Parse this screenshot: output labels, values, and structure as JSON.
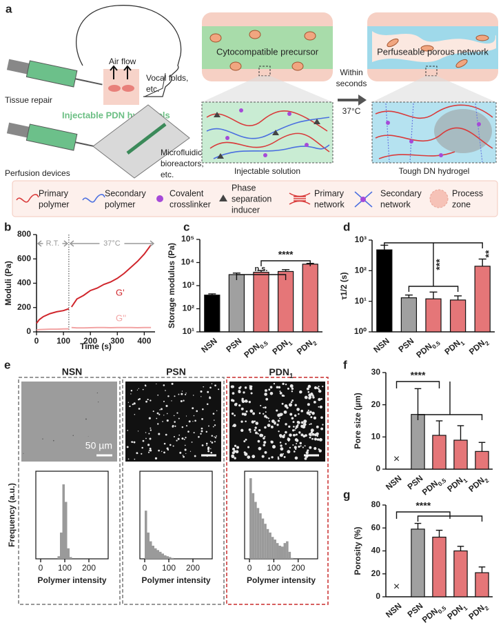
{
  "panel_a": {
    "label": "a",
    "air_flow": "Air flow",
    "vocal_folds": [
      "Vocal folds,",
      "etc."
    ],
    "tissue_repair": "Tissue repair",
    "hydrogel": "Injectable PDN hydrogels",
    "perfusion": "Perfusion devices",
    "devices": [
      "Microfluidics,",
      "bioreactors,",
      "etc."
    ],
    "precursor": "Cytocompatible precursor",
    "porous": "Perfuseable porous network",
    "transition": [
      "Within",
      "seconds"
    ],
    "temperature": "37°C",
    "solution": "Injectable solution",
    "tough": "Tough DN hydrogel",
    "legend": [
      [
        "Primary",
        "polymer"
      ],
      [
        "Secondary",
        "polymer"
      ],
      [
        "Covalent",
        "crosslinker"
      ],
      [
        "Phase",
        "separation",
        "inducer"
      ],
      [
        "Primary",
        "network"
      ],
      [
        "Secondary",
        "network"
      ],
      [
        "Process",
        "zone"
      ]
    ]
  },
  "panel_e": {
    "label": "e",
    "scale_bar": "50 µm"
  },
  "chart_data": [
    {
      "type": "line",
      "panel": "b",
      "x_label": "Time (s)",
      "y_label": "Moduli (Pa)",
      "x": [
        0,
        10,
        25,
        50,
        75,
        100,
        120,
        125,
        130,
        150,
        175,
        200,
        225,
        250,
        275,
        300,
        325,
        350,
        375,
        400,
        425
      ],
      "series": [
        {
          "name": "G'",
          "color": "#d0262c",
          "values": [
            70,
            100,
            125,
            150,
            165,
            175,
            190,
            null,
            205,
            270,
            300,
            340,
            360,
            390,
            410,
            440,
            480,
            530,
            580,
            640,
            715
          ]
        },
        {
          "name": "G''",
          "color": "#f2a3a3",
          "values": [
            15,
            18,
            20,
            22,
            22,
            24,
            25,
            null,
            35,
            33,
            33,
            34,
            35,
            36,
            34,
            35,
            36,
            35,
            34,
            35,
            36
          ]
        }
      ],
      "xlim": [
        0,
        440
      ],
      "ylim": [
        0,
        800
      ],
      "xticks": [
        0,
        100,
        200,
        300,
        400
      ],
      "yticks": [
        0,
        200,
        400,
        600,
        800
      ],
      "annotations": [
        "R.T.",
        "37°C"
      ],
      "vlines": [
        120
      ]
    },
    {
      "type": "bar",
      "panel": "c",
      "y_label": "Storage modulus (Pa)",
      "categories": [
        "NSN",
        "PSN",
        "PDN0.5",
        "PDN1",
        "PDN2"
      ],
      "values": [
        390,
        3000,
        3800,
        4100,
        8500
      ],
      "errors": [
        50,
        500,
        700,
        800,
        700
      ],
      "colors": [
        "#000000",
        "#a0a0a0",
        "#e57678",
        "#e57678",
        "#e57678"
      ],
      "log_y": true,
      "ylim": [
        10,
        100000
      ],
      "yticks": [
        {
          "value": 10,
          "label": "10¹"
        },
        {
          "value": 100,
          "label": "10²"
        },
        {
          "value": 1000,
          "label": "10³"
        },
        {
          "value": 10000,
          "label": "10⁴"
        },
        {
          "value": 100000,
          "label": "10⁵"
        }
      ],
      "annotations": [
        "n.s.",
        "****"
      ]
    },
    {
      "type": "bar",
      "panel": "d",
      "y_label": "τ1/2 (s)",
      "categories": [
        "NSN",
        "PSN",
        "PDN0.5",
        "PDN1",
        "PDN2"
      ],
      "values": [
        480,
        13,
        12,
        11,
        140
      ],
      "errors": [
        200,
        3,
        8,
        4,
        100
      ],
      "colors": [
        "#000000",
        "#a0a0a0",
        "#e57678",
        "#e57678",
        "#e57678"
      ],
      "log_y": true,
      "ylim": [
        1,
        1000
      ],
      "yticks": [
        {
          "value": 1,
          "label": "10⁰"
        },
        {
          "value": 10,
          "label": "10¹"
        },
        {
          "value": 100,
          "label": "10²"
        },
        {
          "value": 1000,
          "label": "10³"
        }
      ],
      "annotations": [
        "***",
        "**"
      ]
    },
    {
      "type": "histogram",
      "title": "NSN",
      "x_label": "Polymer intensity",
      "y_label": "Frequency (a.u.)",
      "color": "#9a9a9a",
      "bins": [
        0,
        10,
        20,
        30,
        40,
        50,
        60,
        70,
        80,
        90,
        100,
        110,
        120,
        130,
        140,
        150,
        160,
        170,
        180,
        190,
        200,
        210,
        220,
        230,
        240,
        250,
        260
      ],
      "counts": [
        0,
        0,
        0,
        0,
        0,
        0,
        0,
        3,
        30,
        85,
        65,
        12,
        2,
        0,
        0,
        0,
        0,
        0,
        0,
        0,
        0,
        0,
        0,
        0,
        0,
        0
      ],
      "xlim": [
        -20,
        280
      ],
      "xticks": [
        0,
        100,
        200
      ],
      "ylim": [
        0,
        100
      ]
    },
    {
      "type": "histogram",
      "title": "PSN",
      "x_label": "Polymer intensity",
      "color": "#9a9a9a",
      "bins": [
        0,
        10,
        20,
        30,
        40,
        50,
        60,
        70,
        80,
        90,
        100,
        110,
        120,
        130,
        140,
        150,
        160,
        170,
        180,
        190,
        200,
        210,
        220,
        230,
        240,
        250,
        260
      ],
      "counts": [
        55,
        30,
        20,
        15,
        12,
        10,
        8,
        6,
        4,
        3,
        2,
        1,
        0,
        0,
        0,
        0,
        0,
        0,
        0,
        0,
        0,
        0,
        0,
        0,
        0,
        0
      ],
      "xlim": [
        -20,
        280
      ],
      "xticks": [
        0,
        100,
        200
      ],
      "ylim": [
        0,
        100
      ]
    },
    {
      "type": "histogram",
      "title": "PDN1",
      "x_label": "Polymer intensity",
      "color": "#9a9a9a",
      "bins": [
        0,
        10,
        20,
        30,
        40,
        50,
        60,
        70,
        80,
        90,
        100,
        110,
        120,
        130,
        140,
        150,
        160,
        170,
        180,
        190,
        200,
        210,
        220,
        230,
        240,
        250,
        260
      ],
      "counts": [
        92,
        75,
        65,
        58,
        52,
        46,
        40,
        34,
        30,
        25,
        22,
        18,
        15,
        14,
        18,
        20,
        8,
        1,
        0,
        0,
        0,
        0,
        0,
        0,
        0,
        0
      ],
      "xlim": [
        -20,
        280
      ],
      "xticks": [
        0,
        100,
        200
      ],
      "ylim": [
        0,
        100
      ]
    },
    {
      "type": "bar",
      "panel": "f",
      "y_label": "Pore size (µm)",
      "categories": [
        "NSN",
        "PSN",
        "PDN0.5",
        "PDN1",
        "PDN2"
      ],
      "values": [
        null,
        17,
        10.5,
        9,
        5.5
      ],
      "errors": [
        null,
        8,
        4.5,
        4.5,
        2.8
      ],
      "colors": [
        "#000000",
        "#a0a0a0",
        "#e57678",
        "#e57678",
        "#e57678"
      ],
      "ylim": [
        0,
        30
      ],
      "yticks": [
        0,
        10,
        20,
        30
      ],
      "annotations": [
        "****"
      ],
      "missing_marker": "×"
    },
    {
      "type": "bar",
      "panel": "g",
      "y_label": "Porosity (%)",
      "categories": [
        "NSN",
        "PSN",
        "PDN0.5",
        "PDN1",
        "PDN2"
      ],
      "values": [
        null,
        59,
        52,
        40,
        21
      ],
      "errors": [
        null,
        5,
        6,
        4,
        5
      ],
      "colors": [
        "#000000",
        "#a0a0a0",
        "#e57678",
        "#e57678",
        "#e57678"
      ],
      "ylim": [
        0,
        80
      ],
      "yticks": [
        0,
        20,
        40,
        60,
        80
      ],
      "annotations": [
        "****"
      ],
      "missing_marker": "×"
    }
  ]
}
